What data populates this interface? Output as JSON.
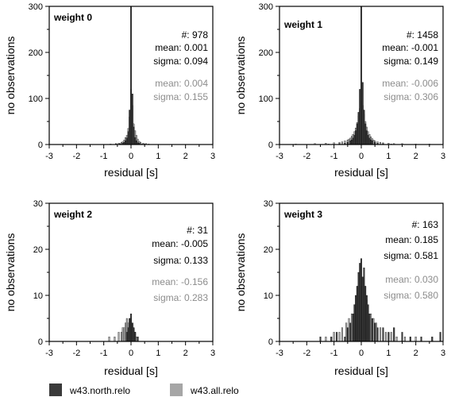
{
  "colors": {
    "north": "#3a3a3a",
    "all": "#a6a6a6",
    "light_text": "#8c8c8c"
  },
  "legend": [
    {
      "label": "w43.north.relo",
      "color": "#3a3a3a"
    },
    {
      "label": "w43.all.relo",
      "color": "#a6a6a6"
    }
  ],
  "chart_data": [
    {
      "type": "bar",
      "title": "weight 0",
      "xlabel": "residual [s]",
      "ylabel": "no observations",
      "xlim": [
        -3,
        3
      ],
      "ylim": [
        0,
        300
      ],
      "xticks": [
        -3,
        -2,
        -1,
        0,
        1,
        2,
        3
      ],
      "yticks": [
        0,
        100,
        200,
        300
      ],
      "count": "#: 978",
      "stats_north": [
        "mean: 0.001",
        "sigma: 0.094"
      ],
      "stats_all": [
        "mean: 0.004",
        "sigma: 0.155"
      ],
      "bin_width": 0.05,
      "series": [
        {
          "name": "w43.north.relo",
          "x": [
            -0.55,
            -0.4,
            -0.3,
            -0.25,
            -0.2,
            -0.15,
            -0.1,
            -0.05,
            0,
            0.05,
            0.1,
            0.15,
            0.2,
            0.25,
            0.3,
            0.4,
            0.5
          ],
          "values": [
            1,
            2,
            3,
            5,
            8,
            14,
            28,
            75,
            300,
            110,
            38,
            15,
            8,
            4,
            3,
            1,
            1
          ]
        },
        {
          "name": "w43.all.relo",
          "x": [
            -0.75,
            -0.55,
            -0.45,
            -0.35,
            -0.3,
            -0.25,
            -0.2,
            -0.15,
            -0.1,
            -0.05,
            0,
            0.05,
            0.1,
            0.15,
            0.2,
            0.25,
            0.3,
            0.35,
            0.45,
            0.55,
            0.65
          ],
          "values": [
            1,
            2,
            3,
            5,
            6,
            10,
            15,
            20,
            35,
            60,
            120,
            85,
            45,
            30,
            20,
            12,
            7,
            5,
            3,
            2,
            1
          ]
        }
      ]
    },
    {
      "type": "bar",
      "title": "weight 1",
      "xlabel": "residual [s]",
      "ylabel": "no observations",
      "xlim": [
        -3,
        3
      ],
      "ylim": [
        0,
        300
      ],
      "xticks": [
        -3,
        -2,
        -1,
        0,
        1,
        2,
        3
      ],
      "yticks": [
        0,
        100,
        200,
        300
      ],
      "count": "#: 1458",
      "stats_north": [
        "mean: -0.001",
        "sigma: 0.149"
      ],
      "stats_all": [
        "mean: -0.006",
        "sigma: 0.306"
      ],
      "bin_width": 0.05,
      "series": [
        {
          "name": "w43.north.relo",
          "x": [
            -1.2,
            -0.8,
            -0.6,
            -0.5,
            -0.4,
            -0.35,
            -0.3,
            -0.25,
            -0.2,
            -0.15,
            -0.1,
            -0.05,
            0,
            0.05,
            0.1,
            0.15,
            0.2,
            0.25,
            0.3,
            0.35,
            0.4,
            0.5,
            0.6,
            0.8,
            1.1
          ],
          "values": [
            1,
            2,
            3,
            5,
            8,
            10,
            14,
            20,
            30,
            45,
            70,
            120,
            300,
            135,
            75,
            45,
            30,
            20,
            14,
            10,
            8,
            5,
            3,
            2,
            1
          ]
        },
        {
          "name": "w43.all.relo",
          "x": [
            -2.4,
            -1.7,
            -1.3,
            -1.0,
            -0.8,
            -0.7,
            -0.6,
            -0.5,
            -0.45,
            -0.4,
            -0.35,
            -0.3,
            -0.25,
            -0.2,
            -0.15,
            -0.1,
            -0.05,
            0,
            0.05,
            0.1,
            0.15,
            0.2,
            0.25,
            0.3,
            0.35,
            0.4,
            0.45,
            0.5,
            0.6,
            0.7,
            0.8,
            1.0,
            1.2,
            1.5,
            2.0,
            2.5
          ],
          "values": [
            1,
            2,
            3,
            4,
            5,
            6,
            8,
            10,
            12,
            14,
            18,
            22,
            28,
            36,
            48,
            62,
            78,
            95,
            85,
            66,
            50,
            38,
            28,
            22,
            17,
            13,
            10,
            8,
            6,
            5,
            4,
            3,
            2,
            2,
            1,
            1
          ]
        }
      ]
    },
    {
      "type": "bar",
      "title": "weight 2",
      "xlabel": "residual [s]",
      "ylabel": "no observations",
      "xlim": [
        -3,
        3
      ],
      "ylim": [
        0,
        30
      ],
      "xticks": [
        -3,
        -2,
        -1,
        0,
        1,
        2,
        3
      ],
      "yticks": [
        0,
        10,
        20,
        30
      ],
      "count": "#: 31",
      "stats_north": [
        "mean: -0.005",
        "sigma: 0.133"
      ],
      "stats_all": [
        "mean: -0.156",
        "sigma: 0.283"
      ],
      "bin_width": 0.05,
      "series": [
        {
          "name": "w43.north.relo",
          "x": [
            -0.15,
            -0.1,
            -0.05,
            0,
            0.05,
            0.1,
            0.15,
            0.25
          ],
          "values": [
            2,
            3,
            5,
            6,
            4,
            3,
            2,
            1
          ]
        },
        {
          "name": "w43.all.relo",
          "x": [
            -0.8,
            -0.6,
            -0.45,
            -0.35,
            -0.3,
            -0.25,
            -0.2,
            -0.15,
            -0.1,
            -0.05,
            0,
            0.05,
            0.1,
            0.15,
            0.2
          ],
          "values": [
            1,
            1,
            2,
            2,
            3,
            3,
            4,
            5,
            4,
            5,
            5,
            4,
            3,
            2,
            1
          ]
        }
      ]
    },
    {
      "type": "bar",
      "title": "weight 3",
      "xlabel": "residual [s]",
      "ylabel": "no observations",
      "xlim": [
        -3,
        3
      ],
      "ylim": [
        0,
        30
      ],
      "xticks": [
        -3,
        -2,
        -1,
        0,
        1,
        2,
        3
      ],
      "yticks": [
        0,
        10,
        20,
        30
      ],
      "count": "#: 163",
      "stats_north": [
        "mean: 0.185",
        "sigma: 0.581"
      ],
      "stats_all": [
        "mean: 0.030",
        "sigma: 0.580"
      ],
      "bin_width": 0.05,
      "series": [
        {
          "name": "w43.north.relo",
          "x": [
            -1.5,
            -1.1,
            -0.9,
            -0.6,
            -0.5,
            -0.4,
            -0.3,
            -0.25,
            -0.2,
            -0.15,
            -0.1,
            -0.05,
            0,
            0.05,
            0.1,
            0.15,
            0.2,
            0.25,
            0.3,
            0.4,
            0.5,
            0.6,
            0.8,
            1.0,
            1.2,
            1.5,
            1.8,
            2.2,
            2.6,
            2.9
          ],
          "values": [
            1,
            1,
            2,
            1,
            3,
            4,
            6,
            8,
            10,
            12,
            15,
            17,
            18,
            14,
            16,
            12,
            10,
            8,
            6,
            5,
            4,
            3,
            3,
            2,
            3,
            2,
            1,
            1,
            1,
            2
          ]
        },
        {
          "name": "w43.all.relo",
          "x": [
            -1.3,
            -1.0,
            -0.8,
            -0.7,
            -0.55,
            -0.45,
            -0.35,
            -0.2,
            -0.1,
            0,
            0.1,
            0.2,
            0.35,
            0.45,
            0.55,
            0.7,
            0.9,
            1.1,
            1.3,
            1.6,
            2.0
          ],
          "values": [
            1,
            2,
            2,
            3,
            4,
            5,
            6,
            8,
            10,
            12,
            11,
            9,
            6,
            5,
            4,
            3,
            2,
            2,
            1,
            1,
            1
          ]
        }
      ]
    }
  ]
}
